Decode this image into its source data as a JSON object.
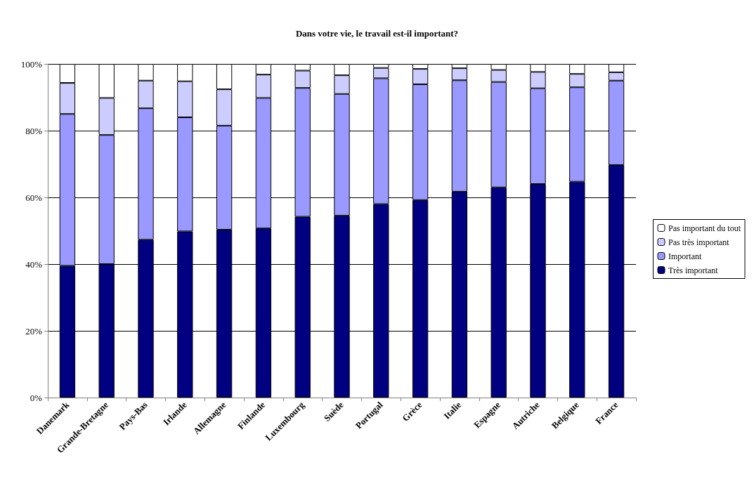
{
  "chart_data": {
    "type": "bar",
    "title": "Dans votre vie, le travail est-il important?",
    "stacked": true,
    "categories": [
      "Danemark",
      "Grande-Bretagne",
      "Pays-Bas",
      "Irlande",
      "Allemagne",
      "Finlande",
      "Luxembourg",
      "Suède",
      "Portugal",
      "Grèce",
      "Italie",
      "Espagne",
      "Autriche",
      "Belgique",
      "France"
    ],
    "series": [
      {
        "name": "Très important",
        "color": "#000080",
        "values": [
          39.5,
          40,
          47.3,
          49.8,
          50.3,
          50.7,
          54.2,
          54.5,
          58,
          59.2,
          61.7,
          63,
          64,
          64.7,
          69.7
        ]
      },
      {
        "name": "Important",
        "color": "#9999ff",
        "values": [
          45.5,
          38.7,
          39.4,
          34.2,
          31.2,
          39.1,
          38.6,
          36.5,
          37.7,
          34.7,
          33.4,
          31.6,
          28.7,
          28.3,
          25.3
        ]
      },
      {
        "name": "Pas très important",
        "color": "#ccccff",
        "values": [
          9.3,
          11.1,
          8.3,
          10.8,
          10.9,
          7,
          5.2,
          5.6,
          3.1,
          4.6,
          3.6,
          3.6,
          4.9,
          4,
          2.5
        ]
      },
      {
        "name": "Pas important du tout",
        "color": "#ffffff",
        "values": [
          5.7,
          10.2,
          5,
          5.2,
          7.6,
          3.2,
          2,
          3.4,
          1.2,
          1.5,
          1.3,
          1.8,
          2.4,
          3,
          2.5
        ]
      }
    ],
    "ylim": [
      0,
      100
    ],
    "yticks": [
      {
        "value": 0,
        "label": "0%"
      },
      {
        "value": 20,
        "label": "20%"
      },
      {
        "value": 40,
        "label": "40%"
      },
      {
        "value": 60,
        "label": "60%"
      },
      {
        "value": 80,
        "label": "80%"
      },
      {
        "value": 100,
        "label": "100%"
      }
    ],
    "grid": "y",
    "legend": "right"
  }
}
